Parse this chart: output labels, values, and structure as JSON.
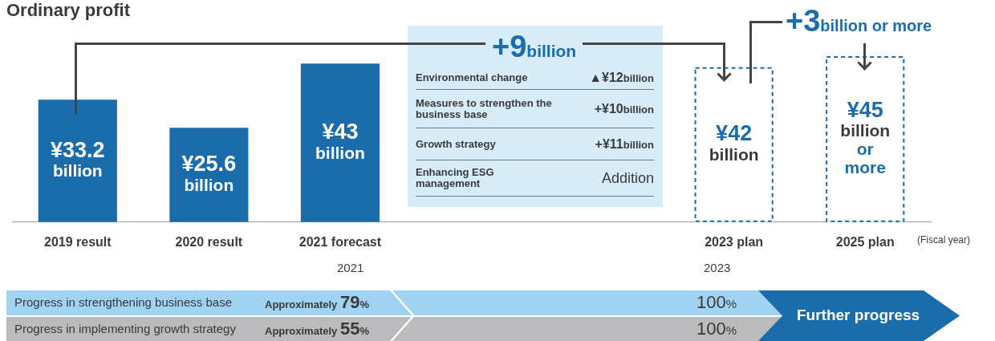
{
  "chart_data": {
    "type": "bar",
    "title": "Ordinary profit",
    "stacked": true,
    "tick_labels": "x",
    "categories": [
      "2019 result",
      "2020 result",
      "2021 forecast",
      null,
      null,
      "2023 plan",
      "2025 plan"
    ],
    "series": [
      {
        "color": "#1a6daa",
        "values": [
          33.2,
          25.6,
          43,
          null,
          null,
          null,
          null
        ],
        "value_labels": [
          "¥33.2 billion",
          "¥25.6 billion",
          "¥43 billion",
          null,
          null,
          null,
          null
        ]
      },
      {
        "color": "#1a6daa",
        "line_style": "dashed",
        "values": [
          null,
          null,
          null,
          null,
          null,
          42,
          45
        ],
        "value_labels": [
          null,
          null,
          null,
          null,
          null,
          "¥42 billion",
          "¥45 billion or more"
        ]
      }
    ],
    "annotations": [
      "+9billion",
      "Environmental change",
      "▲¥12billion",
      "Measures to strengthen the business base",
      "+¥10billion",
      "Growth strategy",
      "+¥11billion",
      "Enhancing ESG management",
      "Addition",
      "+3billion or more",
      "(Fiscal year)",
      "2021",
      "2023",
      "Progress in strengthening business base",
      "Approximately 79%",
      "100%",
      "Progress in implementing growth strategy",
      "Approximately 55%",
      "100%",
      "Further progress"
    ]
  }
}
